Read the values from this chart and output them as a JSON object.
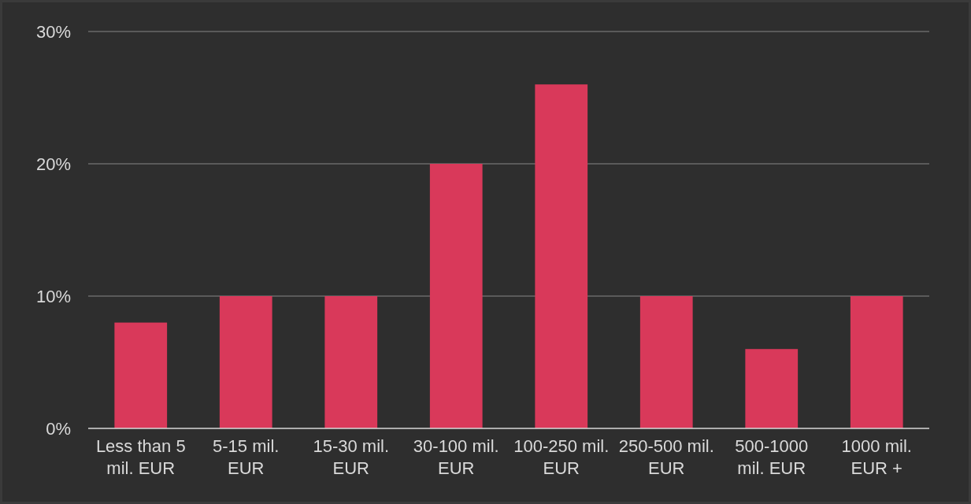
{
  "chart_data": {
    "type": "bar",
    "categories": [
      "Less than 5 mil. EUR",
      "5-15 mil. EUR",
      "15-30 mil. EUR",
      "30-100 mil. EUR",
      "100-250 mil. EUR",
      "250-500 mil. EUR",
      "500-1000 mil. EUR",
      "1000 mil. EUR +"
    ],
    "values": [
      8,
      10,
      10,
      20,
      26,
      10,
      6,
      10
    ],
    "color": "#d9395a",
    "ylim": [
      0,
      30
    ],
    "yticks": [
      {
        "value": 0,
        "label": "0%"
      },
      {
        "value": 10,
        "label": "10%"
      },
      {
        "value": 20,
        "label": "20%"
      },
      {
        "value": 30,
        "label": "30%"
      }
    ],
    "grid": "y"
  }
}
